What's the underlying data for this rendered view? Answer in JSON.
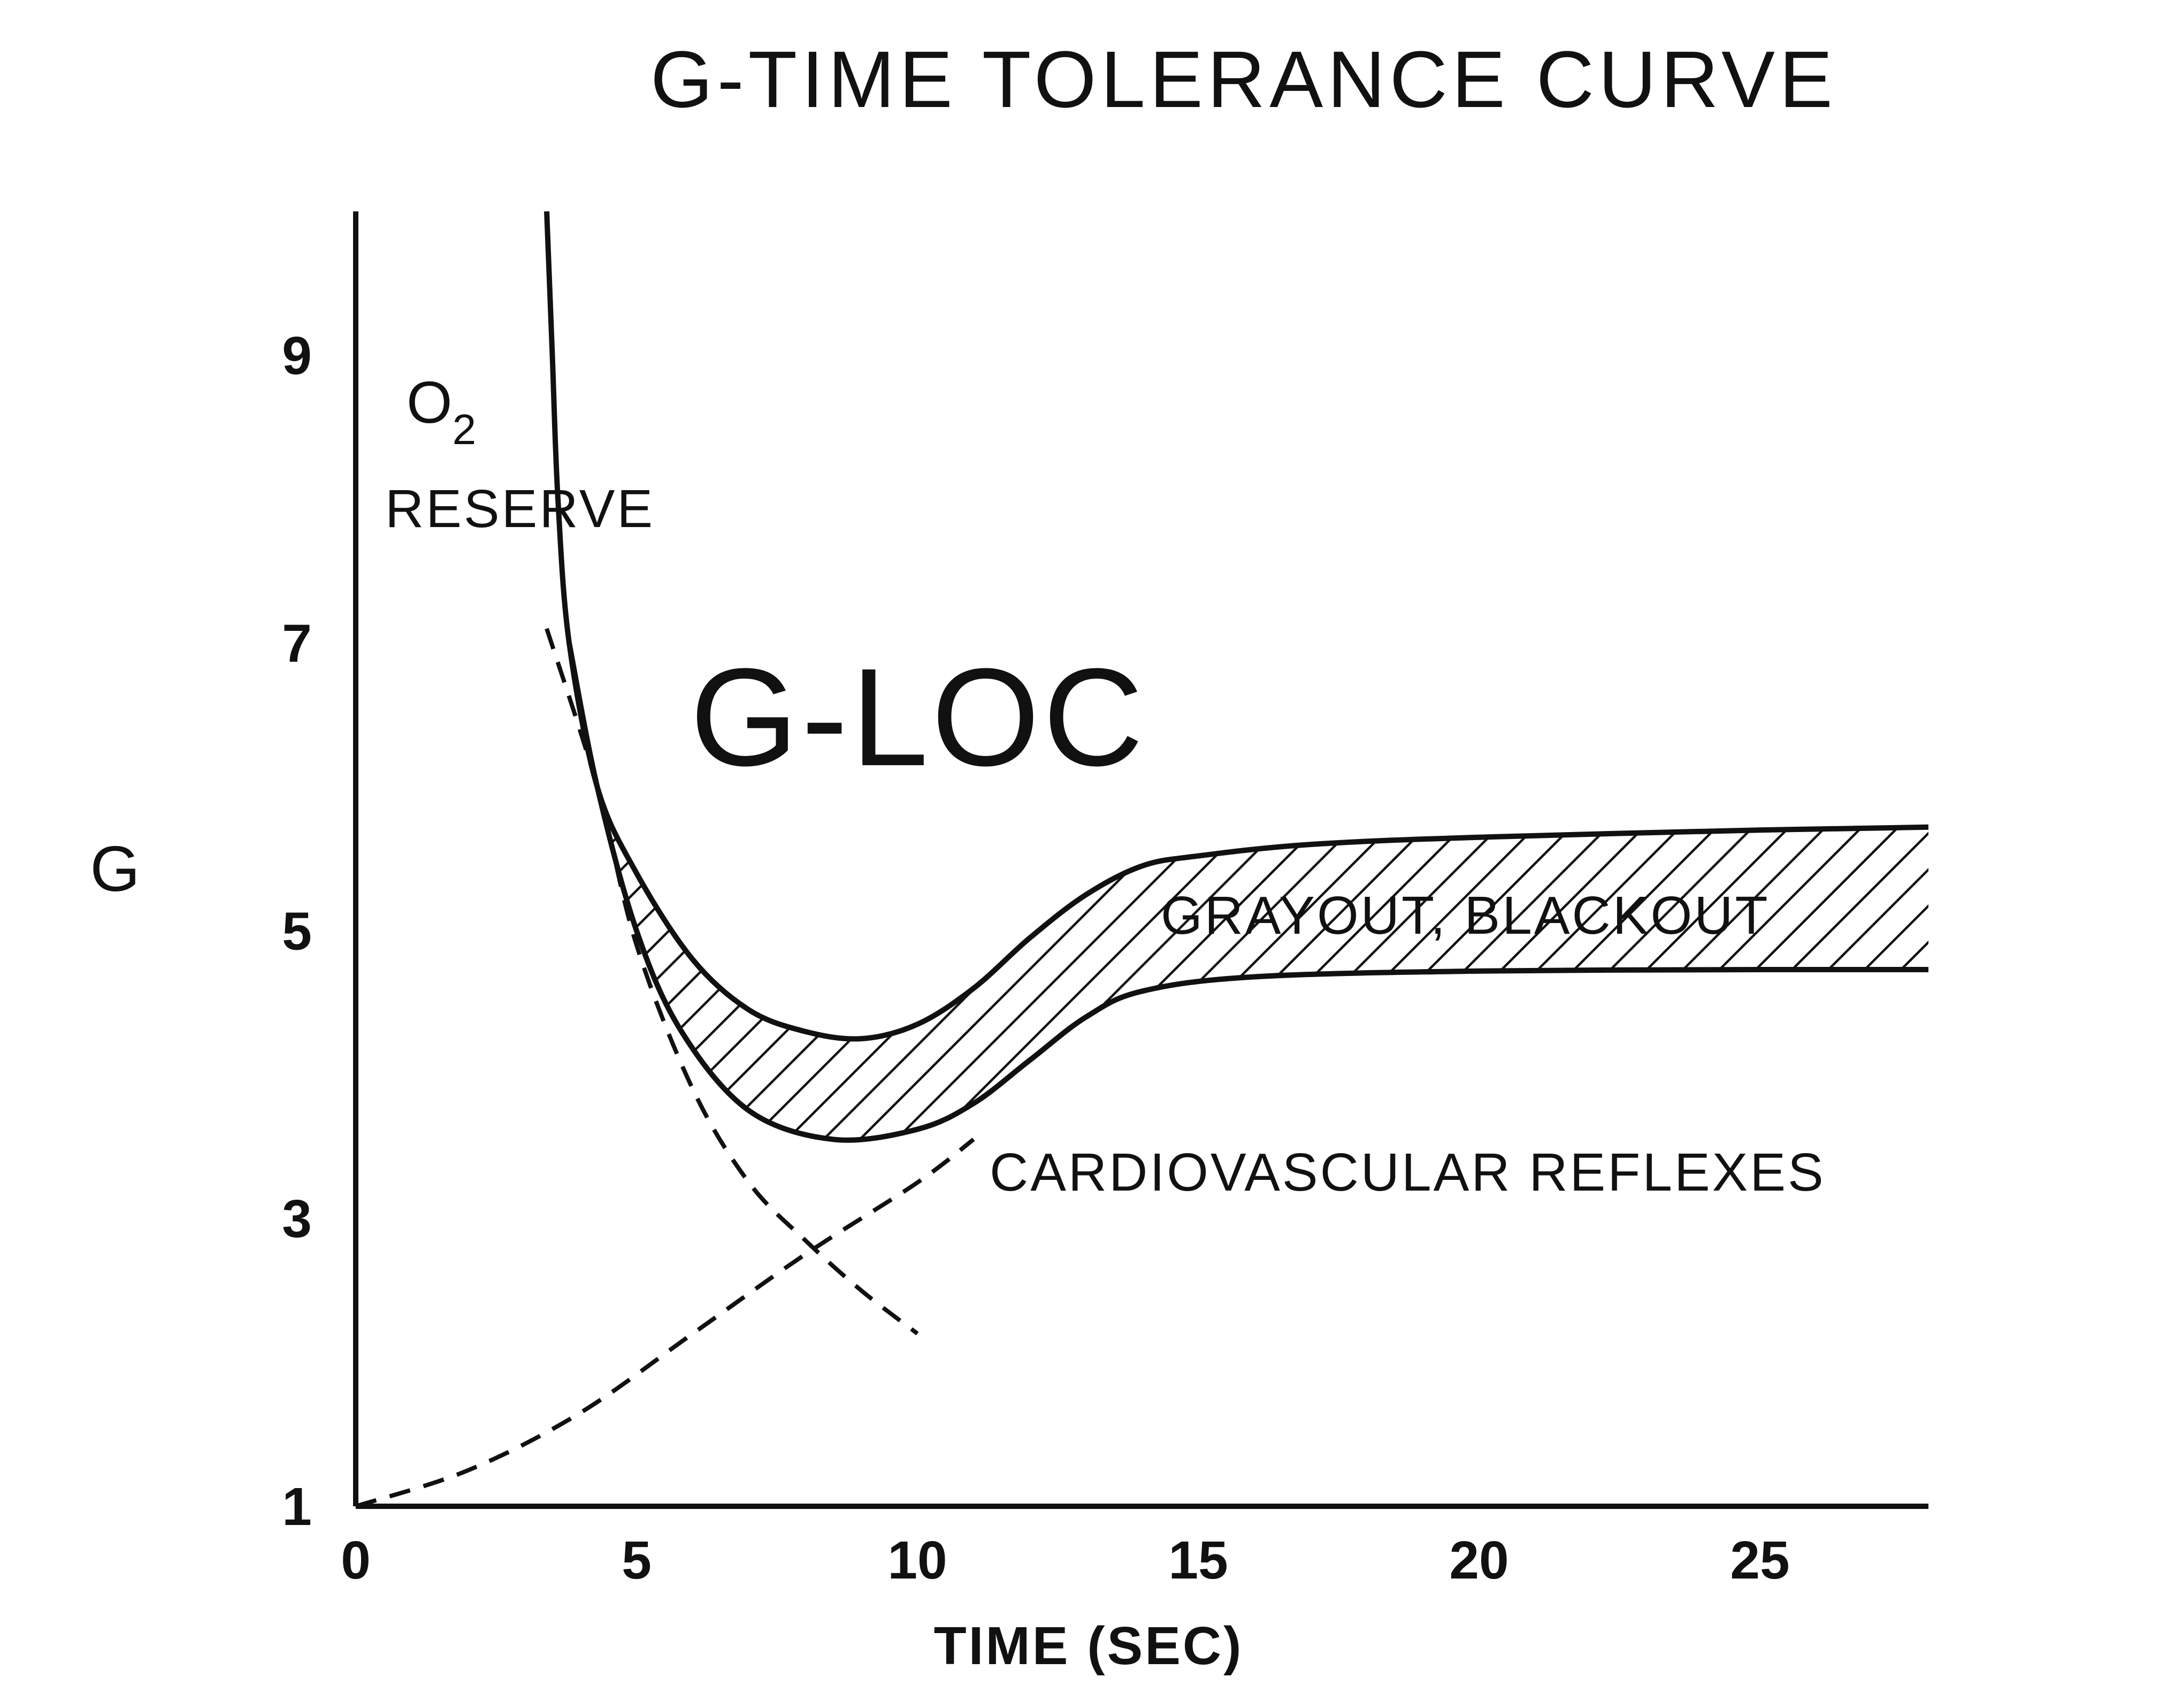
{
  "chart_data": {
    "type": "line",
    "title": "G-TIME TOLERANCE CURVE",
    "xlabel": "TIME (SEC)",
    "ylabel": "G",
    "xlim": [
      0,
      28
    ],
    "ylim": [
      1,
      10
    ],
    "x_ticks": [
      0,
      5,
      10,
      15,
      20,
      25
    ],
    "y_ticks": [
      1,
      3,
      5,
      7,
      9
    ],
    "grid": false,
    "legend": "none",
    "series": [
      {
        "name": "",
        "style": "solid",
        "role": "upper tolerance boundary",
        "points": [
          [
            3.4,
            10
          ],
          [
            3.5,
            9
          ],
          [
            3.6,
            8
          ],
          [
            3.8,
            7
          ],
          [
            4.3,
            6
          ],
          [
            5,
            5.4
          ],
          [
            6,
            4.8
          ],
          [
            7,
            4.45
          ],
          [
            8,
            4.3
          ],
          [
            9,
            4.25
          ],
          [
            10,
            4.35
          ],
          [
            11,
            4.6
          ],
          [
            12,
            4.95
          ],
          [
            13,
            5.25
          ],
          [
            14,
            5.45
          ],
          [
            15,
            5.52
          ],
          [
            17,
            5.6
          ],
          [
            20,
            5.65
          ],
          [
            25,
            5.7
          ],
          [
            28,
            5.72
          ]
        ]
      },
      {
        "name": "",
        "style": "solid",
        "role": "lower tolerance boundary",
        "points": [
          [
            3.8,
            7
          ],
          [
            4.3,
            6
          ],
          [
            5,
            5
          ],
          [
            5.8,
            4.3
          ],
          [
            7,
            3.75
          ],
          [
            8.5,
            3.55
          ],
          [
            10,
            3.62
          ],
          [
            11,
            3.8
          ],
          [
            12,
            4.1
          ],
          [
            13,
            4.4
          ],
          [
            14,
            4.58
          ],
          [
            16,
            4.68
          ],
          [
            20,
            4.72
          ],
          [
            25,
            4.73
          ],
          [
            28,
            4.73
          ]
        ]
      },
      {
        "name": "",
        "style": "dashed",
        "role": "O2 reserve decay",
        "points": [
          [
            3.4,
            7.1
          ],
          [
            4.3,
            6
          ],
          [
            5,
            4.9
          ],
          [
            6,
            3.9
          ],
          [
            7,
            3.25
          ],
          [
            8,
            2.85
          ],
          [
            9,
            2.5
          ],
          [
            10,
            2.2
          ]
        ]
      },
      {
        "name": "",
        "style": "dashed",
        "role": "cardiovascular reflex rise",
        "points": [
          [
            0,
            1
          ],
          [
            2,
            1.25
          ],
          [
            4,
            1.65
          ],
          [
            6,
            2.2
          ],
          [
            8,
            2.75
          ],
          [
            10,
            3.25
          ],
          [
            11,
            3.55
          ]
        ]
      }
    ],
    "hatched_region": "between upper and lower boundaries",
    "annotations": {
      "o2_main": "O",
      "o2_sub": "2",
      "reserve": "RESERVE",
      "gloc": "G-LOC",
      "grayout": "GRAYOUT, BLACKOUT",
      "cardio": "CARDIOVASCULAR REFLEXES"
    }
  }
}
